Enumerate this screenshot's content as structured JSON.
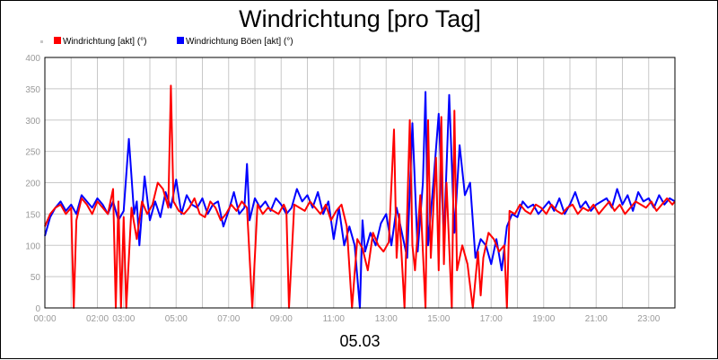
{
  "chart_data": {
    "type": "line",
    "title": "Windrichtung [pro Tag]",
    "date_label": "05.03",
    "xlabel": "",
    "ylabel": "",
    "ylim": [
      0,
      400
    ],
    "y_ticks": [
      0,
      50,
      100,
      150,
      200,
      250,
      300,
      350,
      400
    ],
    "xlim_hours": [
      0,
      24
    ],
    "x_ticks": [
      {
        "h": 0,
        "label": "00:00"
      },
      {
        "h": 2,
        "label": "02:00"
      },
      {
        "h": 3,
        "label": "03:00"
      },
      {
        "h": 5,
        "label": "05:00"
      },
      {
        "h": 7,
        "label": "07:00"
      },
      {
        "h": 9,
        "label": "09:00"
      },
      {
        "h": 11,
        "label": "11:00"
      },
      {
        "h": 13,
        "label": "13:00"
      },
      {
        "h": 15,
        "label": "15:00"
      },
      {
        "h": 17,
        "label": "17:00"
      },
      {
        "h": 19,
        "label": "19:00"
      },
      {
        "h": 21,
        "label": "21:00"
      },
      {
        "h": 23,
        "label": "23:00"
      }
    ],
    "grid": true,
    "legend_position": "top-left",
    "series": [
      {
        "name": "Windrichtung [akt] (°)",
        "color": "#ff0000",
        "x": [
          0,
          0.2,
          0.4,
          0.6,
          0.8,
          1.0,
          1.1,
          1.2,
          1.4,
          1.6,
          1.8,
          2.0,
          2.2,
          2.4,
          2.6,
          2.7,
          2.8,
          2.9,
          3.0,
          3.1,
          3.3,
          3.5,
          3.7,
          3.9,
          4.1,
          4.3,
          4.5,
          4.7,
          4.8,
          4.9,
          5.1,
          5.3,
          5.5,
          5.7,
          5.9,
          6.1,
          6.3,
          6.5,
          6.7,
          6.9,
          7.1,
          7.3,
          7.5,
          7.7,
          7.9,
          8.1,
          8.3,
          8.5,
          8.7,
          8.9,
          9.1,
          9.2,
          9.3,
          9.5,
          9.7,
          9.9,
          10.1,
          10.3,
          10.5,
          10.7,
          10.9,
          11.1,
          11.3,
          11.5,
          11.7,
          11.9,
          12.1,
          12.3,
          12.5,
          12.7,
          12.9,
          13.1,
          13.3,
          13.4,
          13.5,
          13.7,
          13.9,
          14.0,
          14.1,
          14.3,
          14.5,
          14.6,
          14.7,
          14.9,
          15.0,
          15.1,
          15.2,
          15.3,
          15.5,
          15.6,
          15.7,
          15.9,
          16.1,
          16.3,
          16.5,
          16.6,
          16.7,
          16.9,
          17.1,
          17.3,
          17.5,
          17.6,
          17.7,
          17.9,
          18.1,
          18.3,
          18.5,
          18.7,
          18.9,
          19.1,
          19.3,
          19.5,
          19.7,
          19.9,
          20.1,
          20.3,
          20.5,
          20.7,
          20.9,
          21.1,
          21.3,
          21.5,
          21.7,
          21.9,
          22.1,
          22.3,
          22.5,
          22.7,
          22.9,
          23.1,
          23.3,
          23.5,
          23.7,
          23.9,
          24.0
        ],
        "y": [
          130,
          150,
          160,
          165,
          150,
          160,
          0,
          140,
          175,
          165,
          150,
          170,
          160,
          150,
          190,
          0,
          170,
          0,
          145,
          0,
          160,
          110,
          170,
          150,
          165,
          200,
          190,
          160,
          355,
          170,
          155,
          150,
          160,
          175,
          150,
          145,
          170,
          160,
          140,
          150,
          165,
          155,
          170,
          160,
          0,
          165,
          150,
          160,
          155,
          150,
          165,
          155,
          0,
          165,
          160,
          155,
          170,
          160,
          150,
          165,
          140,
          155,
          165,
          130,
          0,
          110,
          95,
          60,
          120,
          100,
          90,
          105,
          285,
          80,
          150,
          0,
          300,
          100,
          60,
          180,
          0,
          300,
          80,
          240,
          60,
          305,
          70,
          200,
          0,
          315,
          60,
          100,
          70,
          0,
          90,
          20,
          80,
          120,
          110,
          90,
          100,
          0,
          155,
          150,
          165,
          155,
          150,
          165,
          160,
          150,
          165,
          155,
          150,
          160,
          165,
          150,
          160,
          155,
          165,
          150,
          160,
          170,
          155,
          165,
          150,
          160,
          170,
          165,
          160,
          170,
          155,
          165,
          175,
          165,
          170
        ]
      },
      {
        "name": "Windrichtung Böen [akt] (°)",
        "color": "#0000ff",
        "x": [
          0,
          0.2,
          0.4,
          0.6,
          0.8,
          1.0,
          1.2,
          1.4,
          1.6,
          1.8,
          2.0,
          2.2,
          2.4,
          2.6,
          2.8,
          3.0,
          3.2,
          3.4,
          3.5,
          3.6,
          3.8,
          4.0,
          4.2,
          4.4,
          4.6,
          4.8,
          5.0,
          5.2,
          5.4,
          5.6,
          5.8,
          6.0,
          6.2,
          6.4,
          6.6,
          6.8,
          7.0,
          7.2,
          7.4,
          7.6,
          7.7,
          7.8,
          8.0,
          8.2,
          8.4,
          8.6,
          8.8,
          9.0,
          9.2,
          9.4,
          9.6,
          9.8,
          10.0,
          10.2,
          10.4,
          10.6,
          10.8,
          11.0,
          11.2,
          11.4,
          11.6,
          11.8,
          12.0,
          12.1,
          12.2,
          12.4,
          12.6,
          12.8,
          13.0,
          13.2,
          13.4,
          13.6,
          13.8,
          14.0,
          14.2,
          14.4,
          14.5,
          14.6,
          14.8,
          15.0,
          15.2,
          15.4,
          15.6,
          15.8,
          16.0,
          16.2,
          16.4,
          16.6,
          16.8,
          17.0,
          17.2,
          17.4,
          17.6,
          17.8,
          18.0,
          18.2,
          18.4,
          18.6,
          18.8,
          19.0,
          19.2,
          19.4,
          19.6,
          19.8,
          20.0,
          20.2,
          20.4,
          20.6,
          20.8,
          21.0,
          21.2,
          21.4,
          21.6,
          21.8,
          22.0,
          22.2,
          22.4,
          22.6,
          22.8,
          23.0,
          23.2,
          23.4,
          23.6,
          23.8,
          24.0
        ],
        "y": [
          115,
          145,
          160,
          170,
          155,
          165,
          150,
          180,
          170,
          160,
          175,
          165,
          150,
          170,
          140,
          155,
          270,
          150,
          170,
          100,
          210,
          140,
          170,
          145,
          185,
          160,
          205,
          150,
          180,
          165,
          160,
          175,
          150,
          165,
          170,
          130,
          155,
          185,
          150,
          160,
          230,
          140,
          175,
          160,
          170,
          155,
          175,
          165,
          150,
          160,
          190,
          170,
          180,
          160,
          185,
          150,
          170,
          110,
          160,
          100,
          130,
          100,
          0,
          140,
          90,
          120,
          100,
          135,
          150,
          100,
          160,
          120,
          80,
          295,
          90,
          200,
          345,
          100,
          200,
          310,
          110,
          340,
          120,
          260,
          180,
          200,
          80,
          110,
          100,
          70,
          110,
          60,
          130,
          150,
          145,
          170,
          160,
          165,
          150,
          160,
          170,
          155,
          175,
          150,
          165,
          185,
          160,
          170,
          155,
          165,
          170,
          175,
          160,
          190,
          165,
          180,
          155,
          185,
          170,
          175,
          160,
          180,
          165,
          175,
          170
        ]
      }
    ]
  }
}
